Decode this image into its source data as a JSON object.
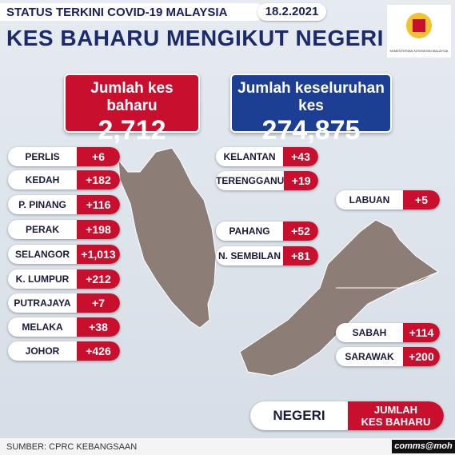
{
  "header": {
    "status": "STATUS TERKINI COVID-19 MALAYSIA",
    "date": "18.2.2021",
    "title": "KES BAHARU MENGIKUT NEGERI",
    "ministry": "KEMENTERIAN KESIHATAN MALAYSIA"
  },
  "totals": {
    "new_label": "Jumlah kes baharu",
    "new_value": "2,712",
    "total_label": "Jumlah keseluruhan kes",
    "total_value": "274,875"
  },
  "west_states": [
    {
      "name": "PERLIS",
      "value": "+6"
    },
    {
      "name": "KEDAH",
      "value": "+182"
    },
    {
      "name": "P. PINANG",
      "value": "+116"
    },
    {
      "name": "PERAK",
      "value": "+198"
    },
    {
      "name": "SELANGOR",
      "value": "+1,013"
    },
    {
      "name": "K. LUMPUR",
      "value": "+212"
    },
    {
      "name": "PUTRAJAYA",
      "value": "+7"
    },
    {
      "name": "MELAKA",
      "value": "+38"
    },
    {
      "name": "JOHOR",
      "value": "+426"
    }
  ],
  "east_coast_states": [
    {
      "name": "KELANTAN",
      "value": "+43"
    },
    {
      "name": "TERENGGANU",
      "value": "+19"
    },
    {
      "name": "PAHANG",
      "value": "+52"
    },
    {
      "name": "N. SEMBILAN",
      "value": "+81"
    }
  ],
  "borneo_states": [
    {
      "name": "LABUAN",
      "value": "+5"
    },
    {
      "name": "SABAH",
      "value": "+114"
    },
    {
      "name": "SARAWAK",
      "value": "+200"
    }
  ],
  "legend": {
    "state": "NEGERI",
    "count_line1": "JUMLAH",
    "count_line2": "KES BAHARU"
  },
  "footer": {
    "source": "SUMBER: CPRC KEBANGSAAN",
    "brand": "comms@moh"
  }
}
